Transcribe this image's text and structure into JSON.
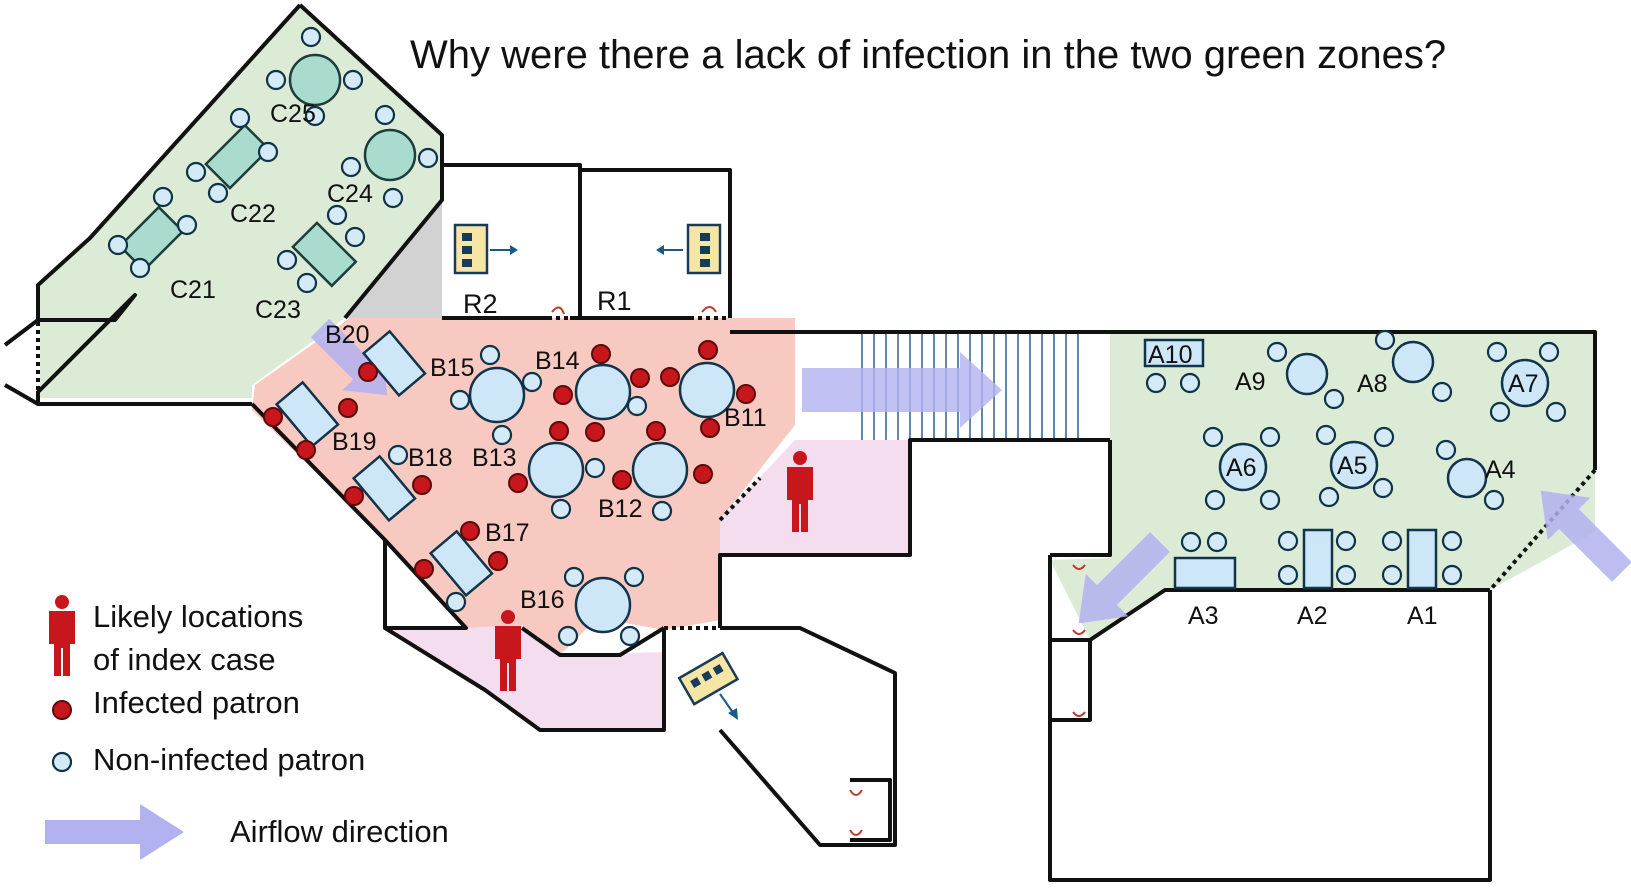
{
  "title": "Why were there a lack of infection in the two green zones?",
  "colors": {
    "green_zone": "#dcebd5",
    "red_zone": "#f8c9c0",
    "pink_zone": "#f4ddee",
    "grey_zone": "#d2d2d2",
    "airflow": "#b3b2f0",
    "infected": "#c8161d",
    "non_infected": "#d5eaf7",
    "wall": "#111111"
  },
  "rooms": {
    "r1": "R1",
    "r2": "R2"
  },
  "tables": {
    "c21": "C21",
    "c22": "C22",
    "c23": "C23",
    "c24": "C24",
    "c25": "C25",
    "b11": "B11",
    "b12": "B12",
    "b13": "B13",
    "b14": "B14",
    "b15": "B15",
    "b16": "B16",
    "b17": "B17",
    "b18": "B18",
    "b19": "B19",
    "b20": "B20",
    "a1": "A1",
    "a2": "A2",
    "a3": "A3",
    "a4": "A4",
    "a5": "A5",
    "a6": "A6",
    "a7": "A7",
    "a8": "A8",
    "a9": "A9",
    "a10": "A10"
  },
  "legend": {
    "index_case_line1": "Likely locations",
    "index_case_line2": "of index case",
    "infected": "Infected patron",
    "non_infected": "Non-infected patron",
    "airflow": "Airflow direction"
  },
  "icons": [
    "person-icon",
    "air-conditioner-icon",
    "airflow-arrow-icon",
    "door-swing-icon"
  ]
}
